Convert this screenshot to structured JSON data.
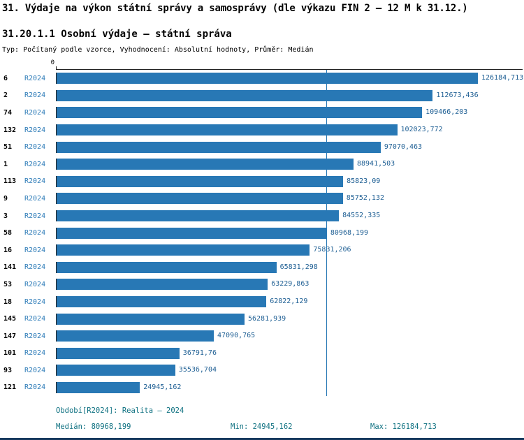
{
  "title": "31. Výdaje na výkon státní správy a samosprávy (dle výkazu FIN 2 – 12 M k 31.12.)",
  "subtitle": "31.20.1.1 Osobní výdaje – státní správa",
  "meta": "Typ: Počítaný podle vzorce, Vyhodnocení: Absolutní hodnoty, Průměr: Medián",
  "chart_data": {
    "type": "bar",
    "orientation": "horizontal",
    "title": "31.20.1.1 Osobní výdaje – státní správa",
    "axis_zero_label": "0",
    "categories": [
      "6",
      "2",
      "74",
      "132",
      "51",
      "1",
      "113",
      "9",
      "3",
      "58",
      "16",
      "141",
      "53",
      "18",
      "145",
      "147",
      "101",
      "93",
      "121"
    ],
    "series": [
      {
        "name": "R2024",
        "values": [
          126184.713,
          112673.436,
          109466.203,
          102023.772,
          97070.463,
          88941.503,
          85823.09,
          85752.132,
          84552.335,
          80968.199,
          75831.206,
          65831.298,
          63229.863,
          62822.129,
          56281.939,
          47090.765,
          36791.76,
          35536.704,
          24945.162
        ],
        "value_labels": [
          "126184,713",
          "112673,436",
          "109466,203",
          "102023,772",
          "97070,463",
          "88941,503",
          "85823,09",
          "85752,132",
          "84552,335",
          "80968,199",
          "75831,206",
          "65831,298",
          "63229,863",
          "62822,129",
          "56281,939",
          "47090,765",
          "36791,76",
          "35536,704",
          "24945,162"
        ]
      }
    ],
    "xlim": [
      0,
      126184.713
    ],
    "median": 80968.199,
    "min": 24945.162,
    "max": 126184.713,
    "grid": false,
    "legend_position": "none",
    "bar_color": "#2878b5",
    "median_line_color": "#2878b5"
  },
  "footer": {
    "period": "Období[R2024]: Realita – 2024",
    "median": "Medián: 80968,199",
    "min": "Min: 24945,162",
    "max": "Max: 126184,713"
  }
}
